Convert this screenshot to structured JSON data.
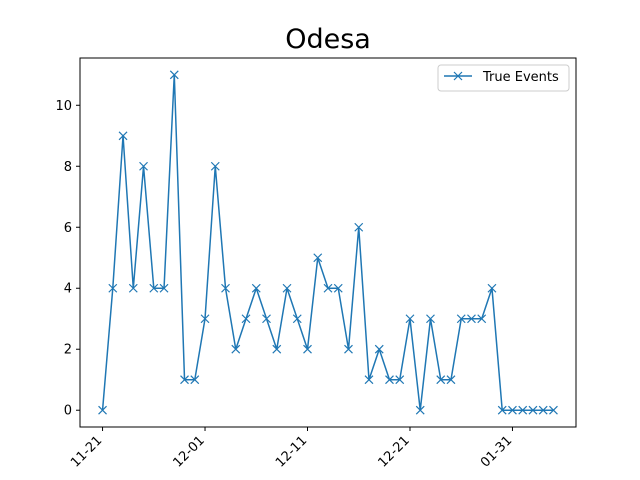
{
  "chart_data": {
    "type": "line",
    "title": "Odesa",
    "xlabel": "",
    "ylabel": "",
    "x_tick_labels": [
      "11-21",
      "12-01",
      "12-11",
      "12-21",
      "01-31"
    ],
    "x_tick_positions": [
      0,
      10,
      20,
      30,
      40
    ],
    "y_ticks": [
      0,
      2,
      4,
      6,
      8,
      10
    ],
    "xlim": [
      -2.2,
      46.2
    ],
    "ylim": [
      -0.55,
      11.55
    ],
    "legend": {
      "position": "top-right"
    },
    "grid": false,
    "series": [
      {
        "name": "True Events",
        "color": "#1f77b4",
        "marker": "x",
        "x": [
          0,
          1,
          2,
          3,
          4,
          5,
          6,
          7,
          8,
          9,
          10,
          11,
          12,
          13,
          14,
          15,
          16,
          17,
          18,
          19,
          20,
          21,
          22,
          23,
          24,
          25,
          26,
          27,
          28,
          29,
          30,
          31,
          32,
          33,
          34,
          35,
          36,
          37,
          38,
          39,
          40,
          41,
          42,
          43,
          44
        ],
        "values": [
          0,
          4,
          9,
          4,
          8,
          4,
          4,
          11,
          1,
          1,
          3,
          8,
          4,
          2,
          3,
          4,
          3,
          2,
          4,
          3,
          2,
          5,
          4,
          4,
          2,
          6,
          1,
          2,
          1,
          1,
          3,
          0,
          3,
          1,
          1,
          3,
          3,
          3,
          4,
          0,
          0,
          0,
          0,
          0,
          0
        ]
      }
    ]
  }
}
